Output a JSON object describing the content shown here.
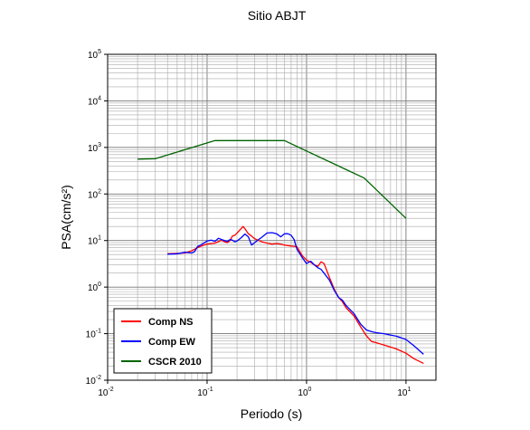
{
  "chart_data": {
    "type": "line",
    "title": "Sitio ABJT",
    "xlabel": "Periodo (s)",
    "ylabel": "PSA(cm/s²)",
    "xscale": "log",
    "yscale": "log",
    "xlim": [
      0.01,
      20
    ],
    "ylim": [
      0.01,
      100000
    ],
    "grid": true,
    "legend_position": "bottom-left",
    "x_ticks": [
      {
        "base": "10",
        "exp": "-2",
        "value": 0.01
      },
      {
        "base": "10",
        "exp": "-1",
        "value": 0.1
      },
      {
        "base": "10",
        "exp": "0",
        "value": 1
      },
      {
        "base": "10",
        "exp": "1",
        "value": 10
      }
    ],
    "y_ticks": [
      {
        "base": "10",
        "exp": "-2",
        "value": 0.01
      },
      {
        "base": "10",
        "exp": "-1",
        "value": 0.1
      },
      {
        "base": "10",
        "exp": "0",
        "value": 1
      },
      {
        "base": "10",
        "exp": "1",
        "value": 10
      },
      {
        "base": "10",
        "exp": "2",
        "value": 100
      },
      {
        "base": "10",
        "exp": "3",
        "value": 1000
      },
      {
        "base": "10",
        "exp": "4",
        "value": 10000
      },
      {
        "base": "10",
        "exp": "5",
        "value": 100000
      }
    ],
    "series": [
      {
        "name": "Comp NS",
        "color": "#ff0000",
        "points": [
          [
            0.04,
            5.2
          ],
          [
            0.05,
            5.3
          ],
          [
            0.06,
            5.4
          ],
          [
            0.07,
            6.0
          ],
          [
            0.08,
            7.0
          ],
          [
            0.09,
            7.8
          ],
          [
            0.1,
            8.4
          ],
          [
            0.11,
            8.6
          ],
          [
            0.12,
            8.8
          ],
          [
            0.13,
            9.5
          ],
          [
            0.14,
            10.2
          ],
          [
            0.15,
            9.4
          ],
          [
            0.16,
            9.0
          ],
          [
            0.17,
            10.0
          ],
          [
            0.18,
            12.5
          ],
          [
            0.19,
            13.0
          ],
          [
            0.2,
            14.5
          ],
          [
            0.22,
            18.0
          ],
          [
            0.23,
            20.0
          ],
          [
            0.24,
            18.0
          ],
          [
            0.26,
            14.0
          ],
          [
            0.28,
            12.5
          ],
          [
            0.3,
            11.0
          ],
          [
            0.33,
            10.0
          ],
          [
            0.36,
            9.3
          ],
          [
            0.4,
            8.8
          ],
          [
            0.45,
            8.4
          ],
          [
            0.5,
            8.6
          ],
          [
            0.55,
            8.4
          ],
          [
            0.6,
            8.0
          ],
          [
            0.7,
            7.6
          ],
          [
            0.8,
            7.4
          ],
          [
            0.9,
            4.8
          ],
          [
            1.0,
            3.8
          ],
          [
            1.1,
            3.4
          ],
          [
            1.2,
            3.0
          ],
          [
            1.3,
            2.8
          ],
          [
            1.4,
            3.5
          ],
          [
            1.5,
            3.2
          ],
          [
            1.7,
            1.6
          ],
          [
            1.9,
            0.9
          ],
          [
            2.1,
            0.6
          ],
          [
            2.3,
            0.48
          ],
          [
            2.5,
            0.36
          ],
          [
            3.0,
            0.24
          ],
          [
            3.5,
            0.14
          ],
          [
            4.0,
            0.09
          ],
          [
            4.5,
            0.068
          ],
          [
            5.0,
            0.064
          ],
          [
            6.0,
            0.057
          ],
          [
            8.0,
            0.047
          ],
          [
            10.0,
            0.038
          ],
          [
            12.0,
            0.029
          ],
          [
            15.0,
            0.023
          ]
        ]
      },
      {
        "name": "Comp EW",
        "color": "#0000ff",
        "points": [
          [
            0.04,
            5.1
          ],
          [
            0.05,
            5.2
          ],
          [
            0.06,
            5.6
          ],
          [
            0.07,
            5.4
          ],
          [
            0.075,
            5.8
          ],
          [
            0.08,
            7.4
          ],
          [
            0.09,
            8.4
          ],
          [
            0.1,
            9.8
          ],
          [
            0.11,
            10.2
          ],
          [
            0.12,
            9.6
          ],
          [
            0.13,
            11.2
          ],
          [
            0.14,
            10.5
          ],
          [
            0.15,
            10.0
          ],
          [
            0.16,
            9.6
          ],
          [
            0.17,
            10.5
          ],
          [
            0.18,
            10.2
          ],
          [
            0.19,
            9.4
          ],
          [
            0.2,
            9.8
          ],
          [
            0.22,
            11.5
          ],
          [
            0.24,
            13.8
          ],
          [
            0.26,
            12.0
          ],
          [
            0.28,
            8.0
          ],
          [
            0.3,
            9.0
          ],
          [
            0.33,
            10.5
          ],
          [
            0.36,
            12.0
          ],
          [
            0.4,
            14.5
          ],
          [
            0.45,
            14.8
          ],
          [
            0.5,
            14.0
          ],
          [
            0.55,
            12.0
          ],
          [
            0.6,
            14.0
          ],
          [
            0.65,
            14.0
          ],
          [
            0.7,
            13.0
          ],
          [
            0.75,
            10.5
          ],
          [
            0.8,
            6.5
          ],
          [
            0.9,
            4.4
          ],
          [
            1.0,
            3.2
          ],
          [
            1.1,
            3.6
          ],
          [
            1.2,
            3.0
          ],
          [
            1.3,
            2.6
          ],
          [
            1.4,
            2.4
          ],
          [
            1.5,
            2.0
          ],
          [
            1.7,
            1.4
          ],
          [
            1.9,
            0.85
          ],
          [
            2.1,
            0.6
          ],
          [
            2.3,
            0.52
          ],
          [
            2.5,
            0.4
          ],
          [
            3.0,
            0.27
          ],
          [
            3.5,
            0.16
          ],
          [
            4.0,
            0.12
          ],
          [
            4.5,
            0.11
          ],
          [
            5.0,
            0.105
          ],
          [
            6.0,
            0.1
          ],
          [
            8.0,
            0.088
          ],
          [
            10.0,
            0.075
          ],
          [
            12.0,
            0.055
          ],
          [
            15.0,
            0.036
          ]
        ]
      },
      {
        "name": "CSCR 2010",
        "color": "#006400",
        "points": [
          [
            0.02,
            560
          ],
          [
            0.03,
            570
          ],
          [
            0.12,
            1400
          ],
          [
            0.6,
            1400
          ],
          [
            3.8,
            220
          ],
          [
            10.0,
            30
          ]
        ]
      }
    ]
  }
}
